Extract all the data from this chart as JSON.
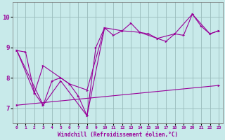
{
  "bg_color": "#c8eaea",
  "line_color": "#990099",
  "grid_color": "#99bbbb",
  "xlabel": "Windchill (Refroidissement éolien,°C)",
  "xlim": [
    -0.5,
    23.5
  ],
  "ylim": [
    6.5,
    10.5
  ],
  "yticks": [
    7,
    8,
    9,
    10
  ],
  "xticks": [
    0,
    1,
    2,
    3,
    4,
    5,
    6,
    7,
    8,
    9,
    10,
    11,
    12,
    13,
    14,
    15,
    16,
    17,
    18,
    19,
    20,
    21,
    22,
    23
  ],
  "line1_x": [
    0,
    1,
    2,
    3,
    4,
    5,
    6,
    7,
    8,
    9,
    10,
    11,
    12,
    13,
    14,
    15,
    16,
    17,
    18,
    19,
    20,
    21,
    22,
    23
  ],
  "line1_y": [
    8.9,
    8.85,
    7.5,
    7.1,
    7.9,
    8.0,
    7.8,
    7.4,
    6.75,
    9.0,
    9.65,
    9.4,
    9.55,
    9.8,
    9.5,
    9.45,
    9.3,
    9.2,
    9.45,
    9.4,
    10.1,
    9.7,
    9.45,
    9.55
  ],
  "line2_x": [
    0,
    2,
    3,
    5,
    6,
    8,
    10
  ],
  "line2_y": [
    8.9,
    7.5,
    8.4,
    8.0,
    7.8,
    7.6,
    9.65
  ],
  "line3_x": [
    0,
    3,
    5,
    8,
    10,
    12,
    14,
    16,
    18,
    20,
    22,
    23
  ],
  "line3_y": [
    8.9,
    7.1,
    7.9,
    6.75,
    9.65,
    9.55,
    9.5,
    9.3,
    9.45,
    10.1,
    9.45,
    9.55
  ],
  "line4_x": [
    0,
    23
  ],
  "line4_y": [
    7.1,
    7.75
  ]
}
